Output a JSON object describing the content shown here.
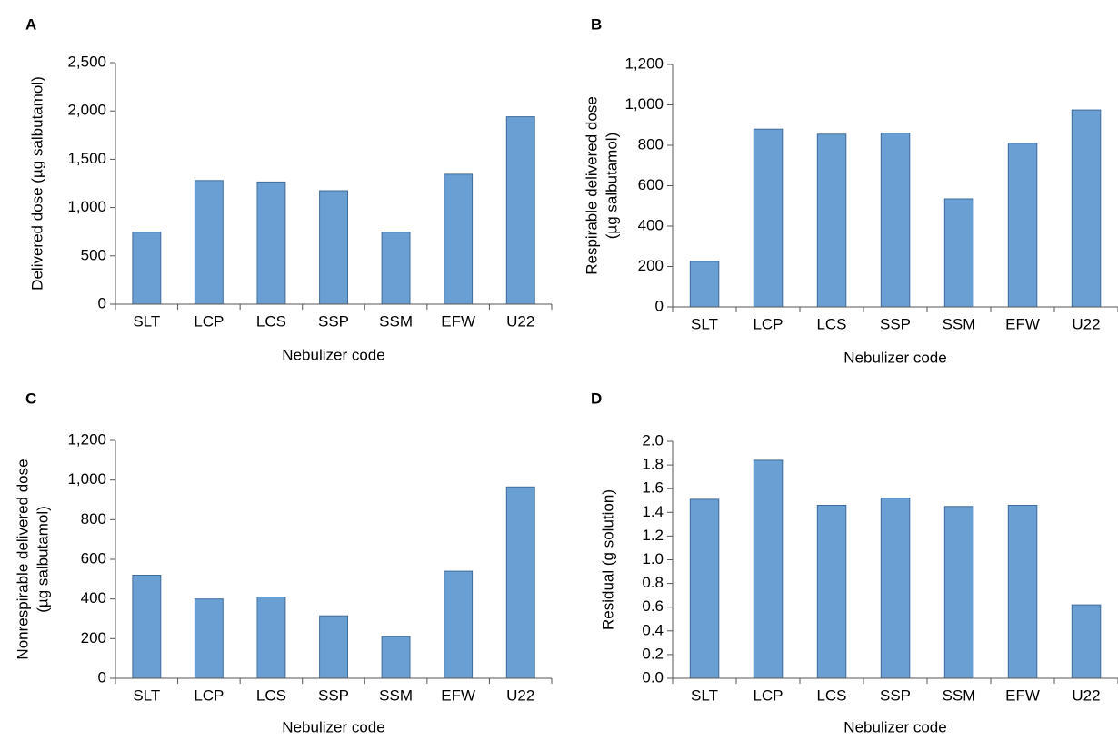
{
  "figure": {
    "accent_color": "#6a9fd4",
    "bar_edge_color": "#3f6c9a",
    "axis_color": "#555555"
  },
  "chart_data": [
    {
      "panel": "A",
      "type": "bar",
      "categories": [
        "SLT",
        "LCP",
        "LCS",
        "SSP",
        "SSM",
        "EFW",
        "U22"
      ],
      "values": [
        745,
        1280,
        1265,
        1175,
        745,
        1345,
        1940
      ],
      "xlabel": "Nebulizer code",
      "ylabel": [
        "Delivered dose (µg salbutamol)"
      ],
      "ylim": [
        0,
        2500
      ],
      "yticks": [
        0,
        500,
        1000,
        1500,
        2000,
        2500
      ],
      "ytick_labels": [
        "0",
        "500",
        "1,000",
        "1,500",
        "2,000",
        "2,500"
      ],
      "grid": false,
      "legend": "none"
    },
    {
      "panel": "B",
      "type": "bar",
      "categories": [
        "SLT",
        "LCP",
        "LCS",
        "SSP",
        "SSM",
        "EFW",
        "U22"
      ],
      "values": [
        225,
        880,
        855,
        860,
        535,
        810,
        975
      ],
      "xlabel": "Nebulizer code",
      "ylabel": [
        "Respirable delivered dose",
        "(µg salbutamol)"
      ],
      "ylim": [
        0,
        1200
      ],
      "yticks": [
        0,
        200,
        400,
        600,
        800,
        1000,
        1200
      ],
      "ytick_labels": [
        "0",
        "200",
        "400",
        "600",
        "800",
        "1,000",
        "1,200"
      ],
      "grid": false,
      "legend": "none"
    },
    {
      "panel": "C",
      "type": "bar",
      "categories": [
        "SLT",
        "LCP",
        "LCS",
        "SSP",
        "SSM",
        "EFW",
        "U22"
      ],
      "values": [
        520,
        400,
        410,
        315,
        210,
        540,
        965
      ],
      "xlabel": "Nebulizer code",
      "ylabel": [
        "Nonrespirable delivered dose",
        "(µg salbutamol)"
      ],
      "ylim": [
        0,
        1200
      ],
      "yticks": [
        0,
        200,
        400,
        600,
        800,
        1000,
        1200
      ],
      "ytick_labels": [
        "0",
        "200",
        "400",
        "600",
        "800",
        "1,000",
        "1,200"
      ],
      "grid": false,
      "legend": "none"
    },
    {
      "panel": "D",
      "type": "bar",
      "categories": [
        "SLT",
        "LCP",
        "LCS",
        "SSP",
        "SSM",
        "EFW",
        "U22"
      ],
      "values": [
        1.51,
        1.84,
        1.46,
        1.52,
        1.45,
        1.46,
        0.62
      ],
      "xlabel": "Nebulizer code",
      "ylabel": [
        "Residual (g solution)"
      ],
      "ylim": [
        0,
        2.0
      ],
      "yticks": [
        0,
        0.2,
        0.4,
        0.6,
        0.8,
        1.0,
        1.2,
        1.4,
        1.6,
        1.8,
        2.0
      ],
      "ytick_labels": [
        "0.0",
        "0.2",
        "0.4",
        "0.6",
        "0.8",
        "1.0",
        "1.2",
        "1.4",
        "1.6",
        "1.8",
        "2.0"
      ],
      "grid": false,
      "legend": "none"
    }
  ]
}
